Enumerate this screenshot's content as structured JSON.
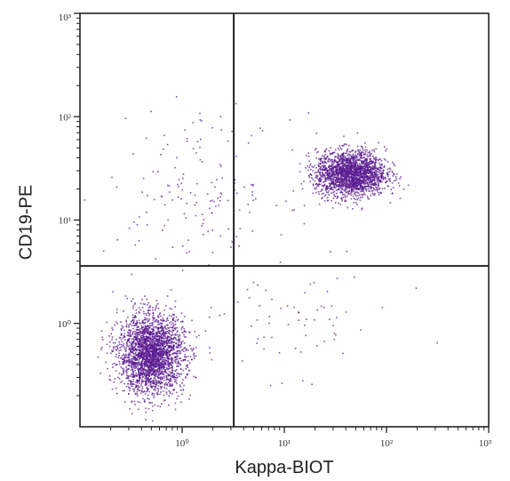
{
  "chart_data": {
    "type": "scatter",
    "plot_style": "flow cytometry dot plot",
    "xlabel": "Kappa-BIOT",
    "ylabel": "CD19-PE",
    "x_scale": "log",
    "y_scale": "log",
    "xlim": [
      0.1,
      1000
    ],
    "ylim": [
      0.1,
      1000
    ],
    "x_ticks": [
      1,
      10,
      100,
      1000
    ],
    "x_tick_labels": [
      "10⁰",
      "10¹",
      "10²",
      "10³"
    ],
    "y_ticks": [
      1,
      10,
      100,
      1000
    ],
    "y_tick_labels": [
      "10⁰",
      "10¹",
      "10²",
      "10³"
    ],
    "quadrant_gate": {
      "x": 3.2,
      "y": 3.6
    },
    "grid": false,
    "point_color": "#5a1a8f",
    "populations": [
      {
        "center": [
          0.5,
          0.5
        ],
        "approx_events": 2600
      },
      {
        "center": [
          45,
          28
        ],
        "approx_events": 2100
      },
      {
        "center": [
          1.5,
          20
        ],
        "approx_events": 160
      },
      {
        "center": [
          10,
          1
        ],
        "approx_events": 70
      }
    ]
  }
}
